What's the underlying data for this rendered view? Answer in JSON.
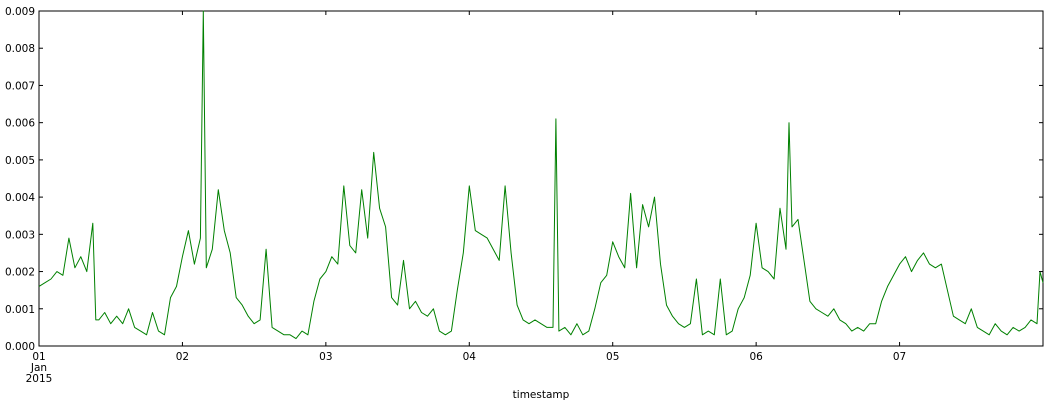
{
  "chart_data": {
    "type": "line",
    "title": "",
    "xlabel": "timestamp",
    "ylabel": "",
    "xlim": [
      "2015-01-01T00:00",
      "2015-01-08T00:00"
    ],
    "ylim": [
      0,
      0.009
    ],
    "grid": false,
    "line_color": "#008000",
    "y_ticks": [
      0,
      0.001,
      0.002,
      0.003,
      0.004,
      0.005,
      0.006,
      0.007,
      0.008,
      0.009
    ],
    "y_tick_labels": [
      "0.000",
      "0.001",
      "0.002",
      "0.003",
      "0.004",
      "0.005",
      "0.006",
      "0.007",
      "0.008",
      "0.009"
    ],
    "x_ticks": [
      {
        "date": "2015-01-01",
        "lines": [
          "01",
          "Jan",
          "2015"
        ]
      },
      {
        "date": "2015-01-02",
        "lines": [
          "02"
        ]
      },
      {
        "date": "2015-01-03",
        "lines": [
          "03"
        ]
      },
      {
        "date": "2015-01-04",
        "lines": [
          "04"
        ]
      },
      {
        "date": "2015-01-05",
        "lines": [
          "05"
        ]
      },
      {
        "date": "2015-01-06",
        "lines": [
          "06"
        ]
      },
      {
        "date": "2015-01-07",
        "lines": [
          "07"
        ]
      }
    ],
    "series": [
      {
        "name": "",
        "points": [
          [
            "2015-01-01T00:00",
            0.0016
          ],
          [
            "2015-01-01T01:00",
            0.0017
          ],
          [
            "2015-01-01T02:00",
            0.0018
          ],
          [
            "2015-01-01T03:00",
            0.002
          ],
          [
            "2015-01-01T04:00",
            0.0019
          ],
          [
            "2015-01-01T05:00",
            0.0029
          ],
          [
            "2015-01-01T06:00",
            0.0021
          ],
          [
            "2015-01-01T07:00",
            0.0024
          ],
          [
            "2015-01-01T08:00",
            0.002
          ],
          [
            "2015-01-01T09:00",
            0.0033
          ],
          [
            "2015-01-01T09:30",
            0.0007
          ],
          [
            "2015-01-01T10:00",
            0.0007
          ],
          [
            "2015-01-01T11:00",
            0.0009
          ],
          [
            "2015-01-01T12:00",
            0.0006
          ],
          [
            "2015-01-01T13:00",
            0.0008
          ],
          [
            "2015-01-01T14:00",
            0.0006
          ],
          [
            "2015-01-01T15:00",
            0.001
          ],
          [
            "2015-01-01T16:00",
            0.0005
          ],
          [
            "2015-01-01T17:00",
            0.0004
          ],
          [
            "2015-01-01T18:00",
            0.0003
          ],
          [
            "2015-01-01T19:00",
            0.0009
          ],
          [
            "2015-01-01T20:00",
            0.0004
          ],
          [
            "2015-01-01T21:00",
            0.0003
          ],
          [
            "2015-01-01T22:00",
            0.0013
          ],
          [
            "2015-01-01T23:00",
            0.0016
          ],
          [
            "2015-01-02T00:00",
            0.0024
          ],
          [
            "2015-01-02T01:00",
            0.0031
          ],
          [
            "2015-01-02T02:00",
            0.0022
          ],
          [
            "2015-01-02T03:00",
            0.0029
          ],
          [
            "2015-01-02T03:30",
            0.009
          ],
          [
            "2015-01-02T04:00",
            0.0021
          ],
          [
            "2015-01-02T05:00",
            0.0026
          ],
          [
            "2015-01-02T06:00",
            0.0042
          ],
          [
            "2015-01-02T07:00",
            0.0031
          ],
          [
            "2015-01-02T08:00",
            0.0025
          ],
          [
            "2015-01-02T09:00",
            0.0013
          ],
          [
            "2015-01-02T10:00",
            0.0011
          ],
          [
            "2015-01-02T11:00",
            0.0008
          ],
          [
            "2015-01-02T12:00",
            0.0006
          ],
          [
            "2015-01-02T13:00",
            0.0007
          ],
          [
            "2015-01-02T14:00",
            0.0026
          ],
          [
            "2015-01-02T15:00",
            0.0005
          ],
          [
            "2015-01-02T16:00",
            0.0004
          ],
          [
            "2015-01-02T17:00",
            0.0003
          ],
          [
            "2015-01-02T18:00",
            0.0003
          ],
          [
            "2015-01-02T19:00",
            0.0002
          ],
          [
            "2015-01-02T20:00",
            0.0004
          ],
          [
            "2015-01-02T21:00",
            0.0003
          ],
          [
            "2015-01-02T22:00",
            0.0012
          ],
          [
            "2015-01-02T23:00",
            0.0018
          ],
          [
            "2015-01-03T00:00",
            0.002
          ],
          [
            "2015-01-03T01:00",
            0.0024
          ],
          [
            "2015-01-03T02:00",
            0.0022
          ],
          [
            "2015-01-03T03:00",
            0.0043
          ],
          [
            "2015-01-03T04:00",
            0.0027
          ],
          [
            "2015-01-03T05:00",
            0.0025
          ],
          [
            "2015-01-03T06:00",
            0.0042
          ],
          [
            "2015-01-03T07:00",
            0.0029
          ],
          [
            "2015-01-03T08:00",
            0.0052
          ],
          [
            "2015-01-03T09:00",
            0.0037
          ],
          [
            "2015-01-03T10:00",
            0.0032
          ],
          [
            "2015-01-03T11:00",
            0.0013
          ],
          [
            "2015-01-03T12:00",
            0.0011
          ],
          [
            "2015-01-03T13:00",
            0.0023
          ],
          [
            "2015-01-03T14:00",
            0.001
          ],
          [
            "2015-01-03T15:00",
            0.0012
          ],
          [
            "2015-01-03T16:00",
            0.0009
          ],
          [
            "2015-01-03T17:00",
            0.0008
          ],
          [
            "2015-01-03T18:00",
            0.001
          ],
          [
            "2015-01-03T19:00",
            0.0004
          ],
          [
            "2015-01-03T20:00",
            0.0003
          ],
          [
            "2015-01-03T21:00",
            0.0004
          ],
          [
            "2015-01-03T22:00",
            0.0015
          ],
          [
            "2015-01-03T23:00",
            0.0025
          ],
          [
            "2015-01-04T00:00",
            0.0043
          ],
          [
            "2015-01-04T01:00",
            0.0031
          ],
          [
            "2015-01-04T02:00",
            0.003
          ],
          [
            "2015-01-04T03:00",
            0.0029
          ],
          [
            "2015-01-04T04:00",
            0.0026
          ],
          [
            "2015-01-04T05:00",
            0.0023
          ],
          [
            "2015-01-04T06:00",
            0.0043
          ],
          [
            "2015-01-04T07:00",
            0.0025
          ],
          [
            "2015-01-04T08:00",
            0.0011
          ],
          [
            "2015-01-04T09:00",
            0.0007
          ],
          [
            "2015-01-04T10:00",
            0.0006
          ],
          [
            "2015-01-04T11:00",
            0.0007
          ],
          [
            "2015-01-04T12:00",
            0.0006
          ],
          [
            "2015-01-04T13:00",
            0.0005
          ],
          [
            "2015-01-04T14:00",
            0.0005
          ],
          [
            "2015-01-04T14:30",
            0.0061
          ],
          [
            "2015-01-04T15:00",
            0.0004
          ],
          [
            "2015-01-04T16:00",
            0.0005
          ],
          [
            "2015-01-04T17:00",
            0.0003
          ],
          [
            "2015-01-04T18:00",
            0.0006
          ],
          [
            "2015-01-04T19:00",
            0.0003
          ],
          [
            "2015-01-04T20:00",
            0.0004
          ],
          [
            "2015-01-04T21:00",
            0.001
          ],
          [
            "2015-01-04T22:00",
            0.0017
          ],
          [
            "2015-01-04T23:00",
            0.0019
          ],
          [
            "2015-01-05T00:00",
            0.0028
          ],
          [
            "2015-01-05T01:00",
            0.0024
          ],
          [
            "2015-01-05T02:00",
            0.0021
          ],
          [
            "2015-01-05T03:00",
            0.0041
          ],
          [
            "2015-01-05T04:00",
            0.0021
          ],
          [
            "2015-01-05T05:00",
            0.0038
          ],
          [
            "2015-01-05T06:00",
            0.0032
          ],
          [
            "2015-01-05T07:00",
            0.004
          ],
          [
            "2015-01-05T08:00",
            0.0022
          ],
          [
            "2015-01-05T09:00",
            0.0011
          ],
          [
            "2015-01-05T10:00",
            0.0008
          ],
          [
            "2015-01-05T11:00",
            0.0006
          ],
          [
            "2015-01-05T12:00",
            0.0005
          ],
          [
            "2015-01-05T13:00",
            0.0006
          ],
          [
            "2015-01-05T14:00",
            0.0018
          ],
          [
            "2015-01-05T15:00",
            0.0003
          ],
          [
            "2015-01-05T16:00",
            0.0004
          ],
          [
            "2015-01-05T17:00",
            0.0003
          ],
          [
            "2015-01-05T18:00",
            0.0018
          ],
          [
            "2015-01-05T19:00",
            0.0003
          ],
          [
            "2015-01-05T20:00",
            0.0004
          ],
          [
            "2015-01-05T21:00",
            0.001
          ],
          [
            "2015-01-05T22:00",
            0.0013
          ],
          [
            "2015-01-05T23:00",
            0.0019
          ],
          [
            "2015-01-06T00:00",
            0.0033
          ],
          [
            "2015-01-06T01:00",
            0.0021
          ],
          [
            "2015-01-06T02:00",
            0.002
          ],
          [
            "2015-01-06T03:00",
            0.0018
          ],
          [
            "2015-01-06T04:00",
            0.0037
          ],
          [
            "2015-01-06T05:00",
            0.0026
          ],
          [
            "2015-01-06T05:30",
            0.006
          ],
          [
            "2015-01-06T06:00",
            0.0032
          ],
          [
            "2015-01-06T07:00",
            0.0034
          ],
          [
            "2015-01-06T08:00",
            0.0023
          ],
          [
            "2015-01-06T09:00",
            0.0012
          ],
          [
            "2015-01-06T10:00",
            0.001
          ],
          [
            "2015-01-06T11:00",
            0.0009
          ],
          [
            "2015-01-06T12:00",
            0.0008
          ],
          [
            "2015-01-06T13:00",
            0.001
          ],
          [
            "2015-01-06T14:00",
            0.0007
          ],
          [
            "2015-01-06T15:00",
            0.0006
          ],
          [
            "2015-01-06T16:00",
            0.0004
          ],
          [
            "2015-01-06T17:00",
            0.0005
          ],
          [
            "2015-01-06T18:00",
            0.0004
          ],
          [
            "2015-01-06T19:00",
            0.0006
          ],
          [
            "2015-01-06T20:00",
            0.0006
          ],
          [
            "2015-01-06T21:00",
            0.0012
          ],
          [
            "2015-01-06T22:00",
            0.0016
          ],
          [
            "2015-01-06T23:00",
            0.0019
          ],
          [
            "2015-01-07T00:00",
            0.0022
          ],
          [
            "2015-01-07T01:00",
            0.0024
          ],
          [
            "2015-01-07T02:00",
            0.002
          ],
          [
            "2015-01-07T03:00",
            0.0023
          ],
          [
            "2015-01-07T04:00",
            0.0025
          ],
          [
            "2015-01-07T05:00",
            0.0022
          ],
          [
            "2015-01-07T06:00",
            0.0021
          ],
          [
            "2015-01-07T07:00",
            0.0022
          ],
          [
            "2015-01-07T08:00",
            0.0015
          ],
          [
            "2015-01-07T09:00",
            0.0008
          ],
          [
            "2015-01-07T10:00",
            0.0007
          ],
          [
            "2015-01-07T11:00",
            0.0006
          ],
          [
            "2015-01-07T12:00",
            0.001
          ],
          [
            "2015-01-07T13:00",
            0.0005
          ],
          [
            "2015-01-07T14:00",
            0.0004
          ],
          [
            "2015-01-07T15:00",
            0.0003
          ],
          [
            "2015-01-07T16:00",
            0.0006
          ],
          [
            "2015-01-07T17:00",
            0.0004
          ],
          [
            "2015-01-07T18:00",
            0.0003
          ],
          [
            "2015-01-07T19:00",
            0.0005
          ],
          [
            "2015-01-07T20:00",
            0.0004
          ],
          [
            "2015-01-07T21:00",
            0.0005
          ],
          [
            "2015-01-07T22:00",
            0.0007
          ],
          [
            "2015-01-07T23:00",
            0.0006
          ],
          [
            "2015-01-07T23:30",
            0.002
          ],
          [
            "2015-01-08T00:00",
            0.0017
          ]
        ]
      }
    ]
  }
}
